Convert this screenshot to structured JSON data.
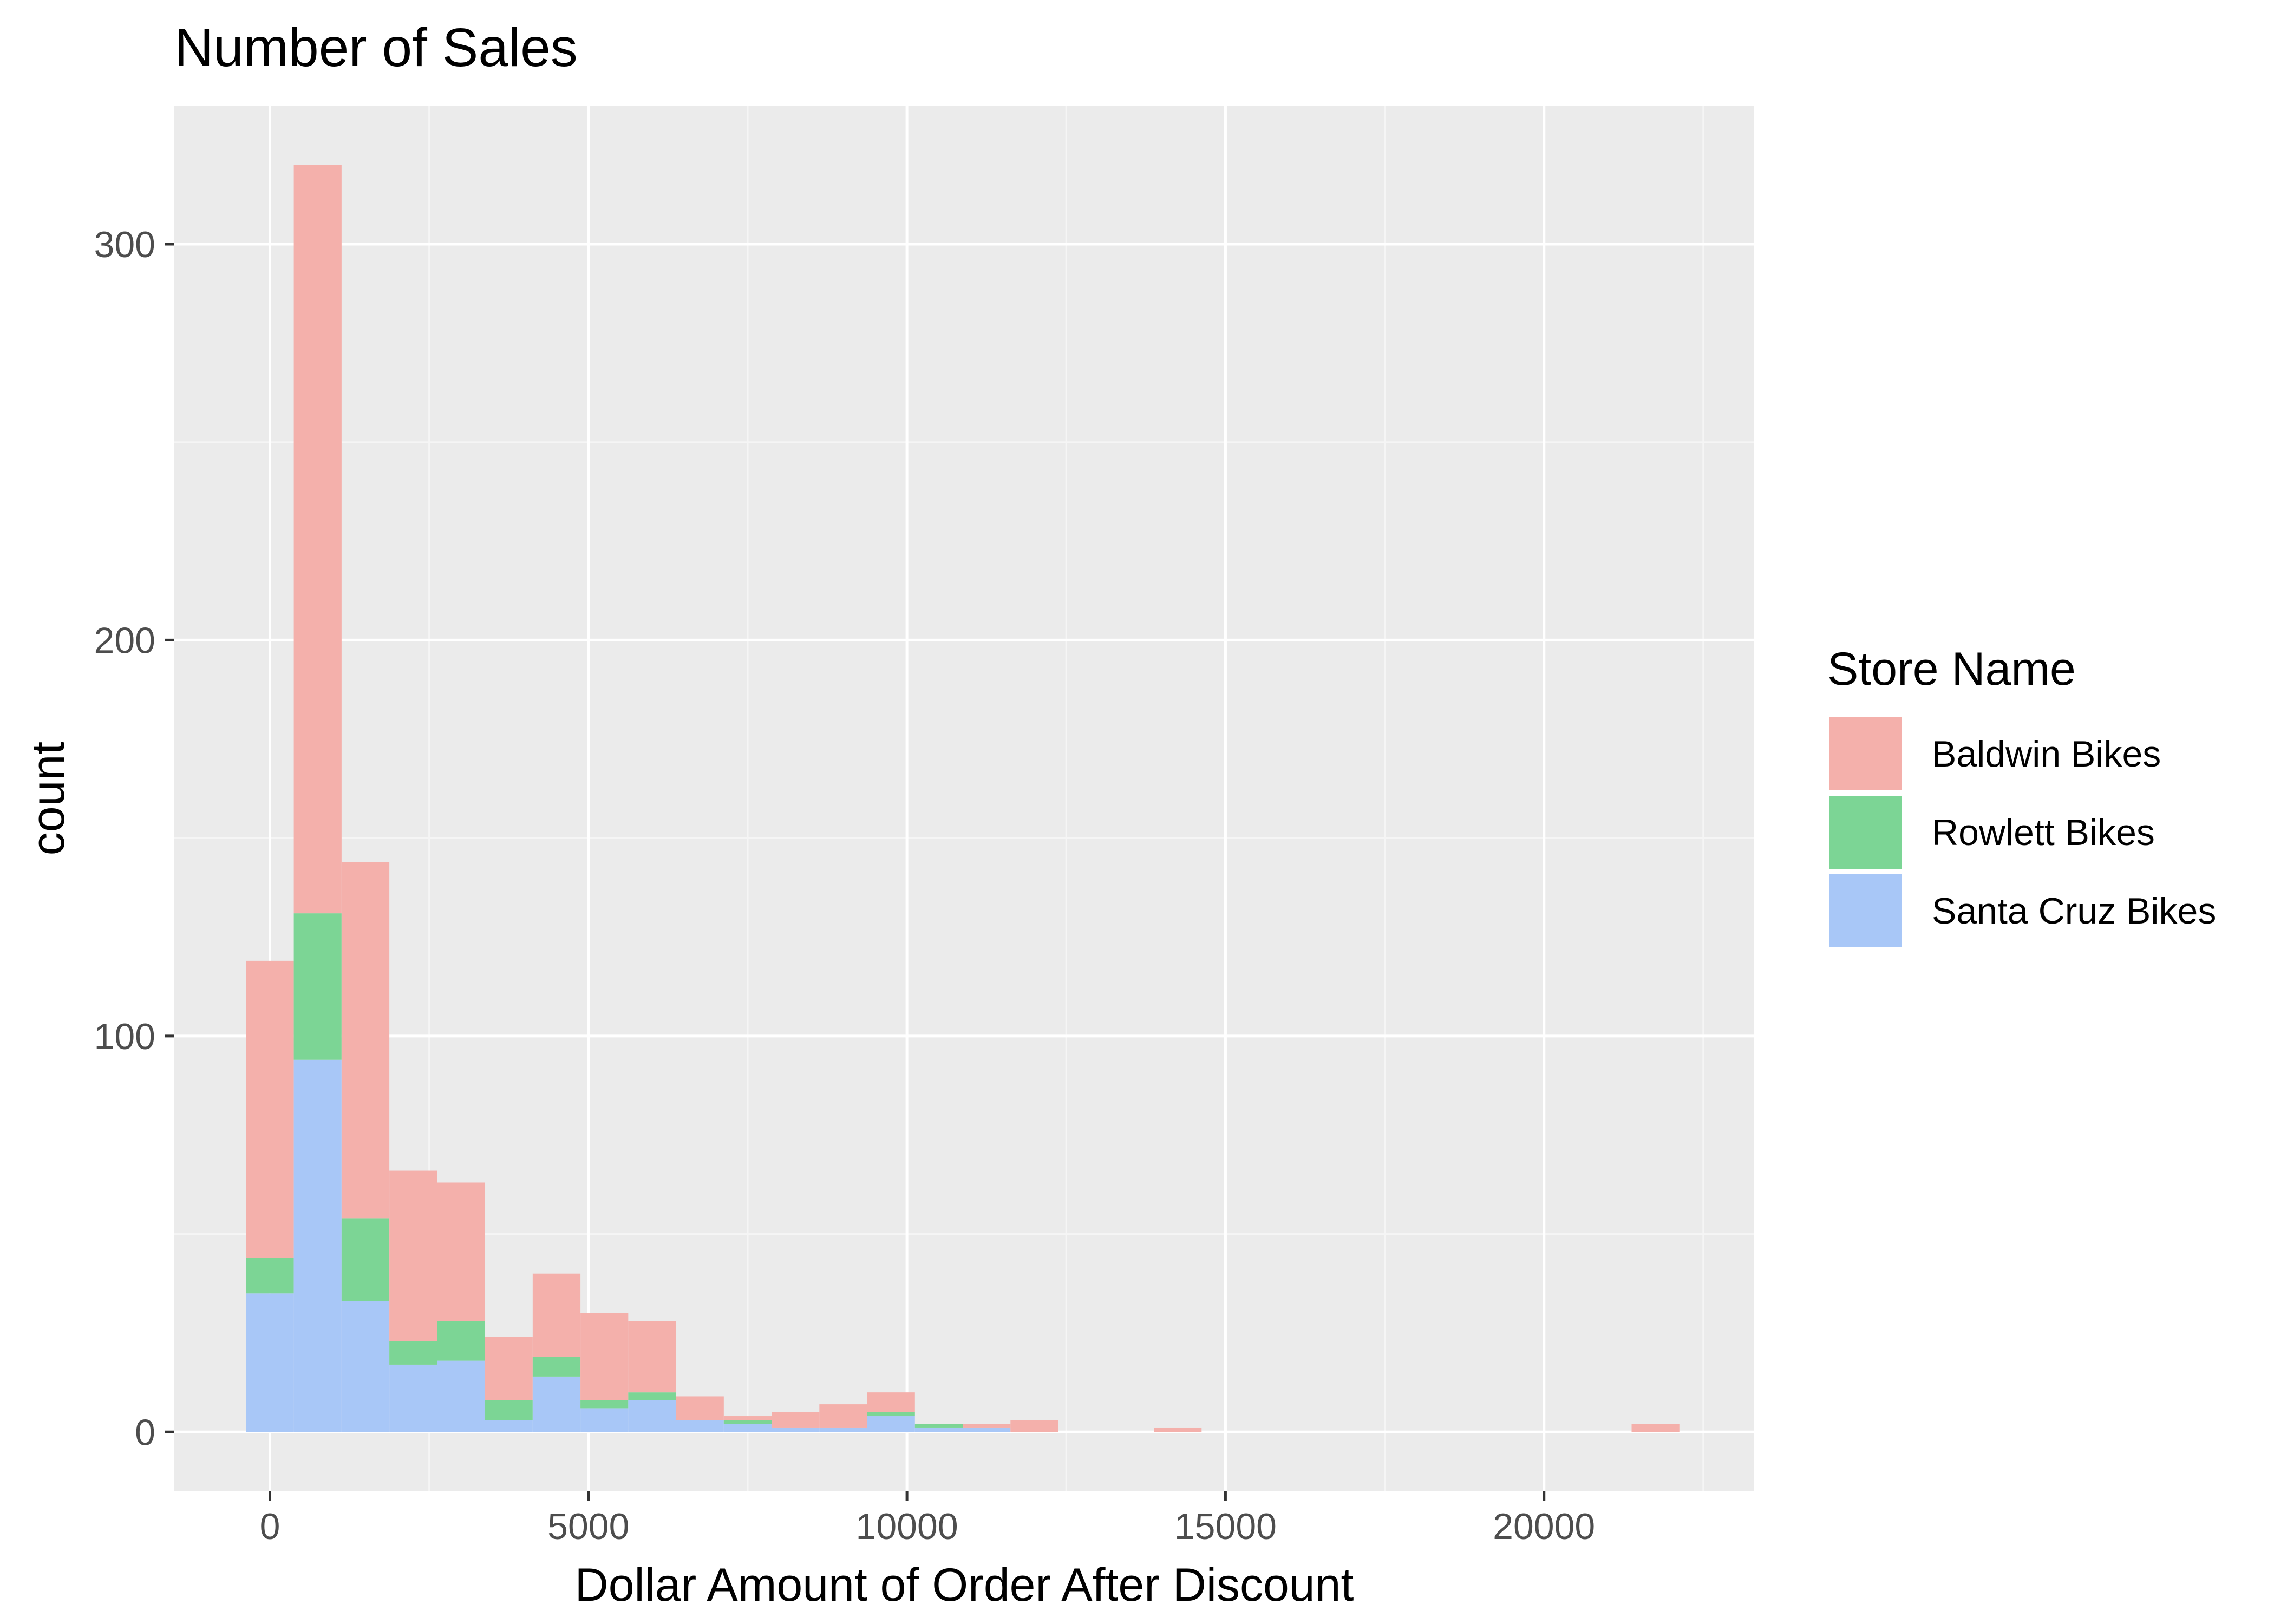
{
  "chart_data": {
    "type": "bar",
    "subtype": "stacked-histogram",
    "title": "Number of Sales",
    "xlabel": "Dollar Amount of Order After Discount",
    "ylabel": "count",
    "xlim": [
      -1500,
      23300
    ],
    "ylim": [
      -15,
      335
    ],
    "xticks": [
      0,
      5000,
      10000,
      15000,
      20000
    ],
    "yticks": [
      0,
      100,
      200,
      300
    ],
    "grid": true,
    "bin_width": 750,
    "bins": [
      {
        "x0": -375,
        "x1": 375,
        "baldwin": 75,
        "rowlett": 9,
        "santa_cruz": 35
      },
      {
        "x0": 375,
        "x1": 1125,
        "baldwin": 189,
        "rowlett": 37,
        "santa_cruz": 94
      },
      {
        "x0": 1125,
        "x1": 1875,
        "baldwin": 90,
        "rowlett": 21,
        "santa_cruz": 33
      },
      {
        "x0": 1875,
        "x1": 2625,
        "baldwin": 43,
        "rowlett": 6,
        "santa_cruz": 17
      },
      {
        "x0": 2625,
        "x1": 3375,
        "baldwin": 35,
        "rowlett": 10,
        "santa_cruz": 18
      },
      {
        "x0": 3375,
        "x1": 4125,
        "baldwin": 16,
        "rowlett": 5,
        "santa_cruz": 3
      },
      {
        "x0": 4125,
        "x1": 4875,
        "baldwin": 21,
        "rowlett": 5,
        "santa_cruz": 14
      },
      {
        "x0": 4875,
        "x1": 5625,
        "baldwin": 22,
        "rowlett": 2,
        "santa_cruz": 6
      },
      {
        "x0": 5625,
        "x1": 6375,
        "baldwin": 18,
        "rowlett": 2,
        "santa_cruz": 8
      },
      {
        "x0": 6375,
        "x1": 7125,
        "baldwin": 6,
        "rowlett": 0,
        "santa_cruz": 3
      },
      {
        "x0": 7125,
        "x1": 7875,
        "baldwin": 1,
        "rowlett": 1,
        "santa_cruz": 2
      },
      {
        "x0": 7875,
        "x1": 8625,
        "baldwin": 4,
        "rowlett": 0,
        "santa_cruz": 1
      },
      {
        "x0": 8625,
        "x1": 9375,
        "baldwin": 6,
        "rowlett": 0,
        "santa_cruz": 1
      },
      {
        "x0": 9375,
        "x1": 10125,
        "baldwin": 5,
        "rowlett": 1,
        "santa_cruz": 4
      },
      {
        "x0": 10125,
        "x1": 10875,
        "baldwin": 0,
        "rowlett": 1,
        "santa_cruz": 1
      },
      {
        "x0": 10875,
        "x1": 11625,
        "baldwin": 1,
        "rowlett": 0,
        "santa_cruz": 1
      },
      {
        "x0": 11625,
        "x1": 12375,
        "baldwin": 3,
        "rowlett": 0,
        "santa_cruz": 0
      },
      {
        "x0": 13875,
        "x1": 14625,
        "baldwin": 1,
        "rowlett": 0,
        "santa_cruz": 0
      },
      {
        "x0": 21375,
        "x1": 22125,
        "baldwin": 2,
        "rowlett": 0,
        "santa_cruz": 0
      }
    ],
    "series": [
      {
        "key": "baldwin",
        "name": "Baldwin Bikes",
        "color": "#f4b0ab"
      },
      {
        "key": "rowlett",
        "name": "Rowlett Bikes",
        "color": "#7cd595"
      },
      {
        "key": "santa_cruz",
        "name": "Santa Cruz Bikes",
        "color": "#a8c7f7"
      }
    ],
    "legend": {
      "title": "Store Name",
      "position": "right"
    }
  },
  "colors": {
    "panel_background": "#ebebeb",
    "grid_major": "#ffffff",
    "grid_minor": "#f5f5f5",
    "tick_text": "#4d4d4d"
  }
}
